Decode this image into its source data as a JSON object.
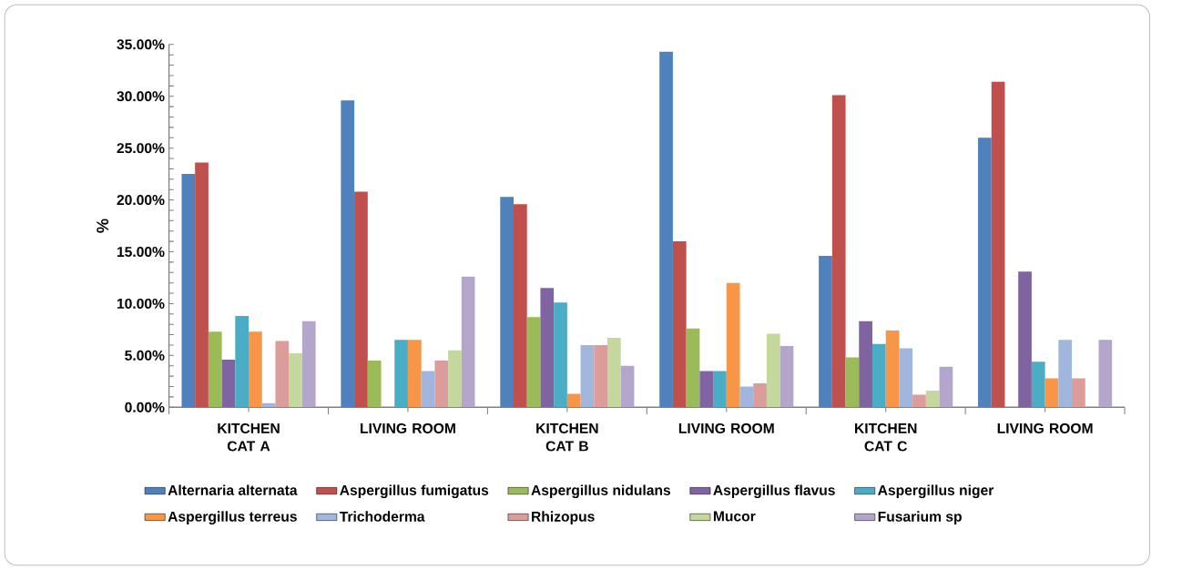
{
  "chart_data": {
    "type": "bar",
    "ylabel": "%",
    "categories": [
      "KITCHEN CAT A",
      "LIVING ROOM",
      "KITCHEN CAT B",
      "LIVING ROOM",
      "KITCHEN CAT C",
      "LIVING ROOM"
    ],
    "series": [
      {
        "name": "Alternaria alternata",
        "color": "#4f81bd",
        "values": [
          22.5,
          29.6,
          20.3,
          34.3,
          14.6,
          26.0
        ]
      },
      {
        "name": "Aspergillus fumigatus",
        "color": "#c0504d",
        "values": [
          23.6,
          20.8,
          19.6,
          16.0,
          30.1,
          31.4
        ]
      },
      {
        "name": "Aspergillus nidulans",
        "color": "#9bbb59",
        "values": [
          7.3,
          4.5,
          8.7,
          7.6,
          4.8,
          0
        ]
      },
      {
        "name": "Aspergillus flavus",
        "color": "#8064a2",
        "values": [
          4.6,
          0,
          11.5,
          3.5,
          8.3,
          13.1
        ]
      },
      {
        "name": "Aspergillus niger",
        "color": "#4bacc6",
        "values": [
          8.8,
          6.5,
          10.1,
          3.5,
          6.1,
          4.4
        ]
      },
      {
        "name": "Aspergillus terreus",
        "color": "#f79646",
        "values": [
          7.3,
          6.5,
          1.3,
          12.0,
          7.4,
          2.8
        ]
      },
      {
        "name": "Trichoderma",
        "color": "#a0b6dc",
        "values": [
          0.4,
          3.5,
          6.0,
          2.0,
          5.7,
          6.5
        ]
      },
      {
        "name": "Rhizopus",
        "color": "#dc9c9a",
        "values": [
          6.4,
          4.5,
          6.0,
          2.3,
          1.2,
          2.8
        ]
      },
      {
        "name": "Mucor",
        "color": "#c4d89e",
        "values": [
          5.2,
          5.5,
          6.7,
          7.1,
          1.6,
          0
        ]
      },
      {
        "name": "Fusarium sp",
        "color": "#b4a6ca",
        "values": [
          8.3,
          12.6,
          4.0,
          5.9,
          3.9,
          6.5
        ]
      }
    ],
    "ylim": [
      0,
      35
    ],
    "yticks": [
      {
        "value": 0,
        "label": "0.00%"
      },
      {
        "value": 5,
        "label": "5.00%"
      },
      {
        "value": 10,
        "label": "10.00%"
      },
      {
        "value": 15,
        "label": "15.00%"
      },
      {
        "value": 20,
        "label": "20.00%"
      },
      {
        "value": 25,
        "label": "25.00%"
      },
      {
        "value": 30,
        "label": "30.00%"
      },
      {
        "value": 35,
        "label": "35.00%"
      }
    ],
    "grid": false,
    "legend": "bottom"
  }
}
